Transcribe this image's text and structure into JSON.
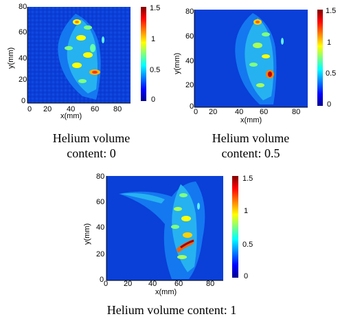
{
  "colorbar": {
    "ticks": [
      "1.5",
      "1",
      "0.5",
      "0"
    ],
    "colors": [
      "#00008f",
      "#0000ff",
      "#00ffff",
      "#ffff00",
      "#ff0000",
      "#800000"
    ]
  },
  "axes": {
    "x_label": "x(mm)",
    "y_label": "y(mm)",
    "x_ticks": [
      "0",
      "20",
      "40",
      "60",
      "80"
    ],
    "y_ticks": [
      "80",
      "60",
      "40",
      "20",
      "0"
    ]
  },
  "panels": [
    {
      "caption_line1": "Helium volume",
      "caption_line2": "content: 0"
    },
    {
      "caption_line1": "Helium volume",
      "caption_line2": "content: 0.5"
    },
    {
      "caption_line1": "Helium volume content: 1",
      "caption_line2": ""
    }
  ]
}
